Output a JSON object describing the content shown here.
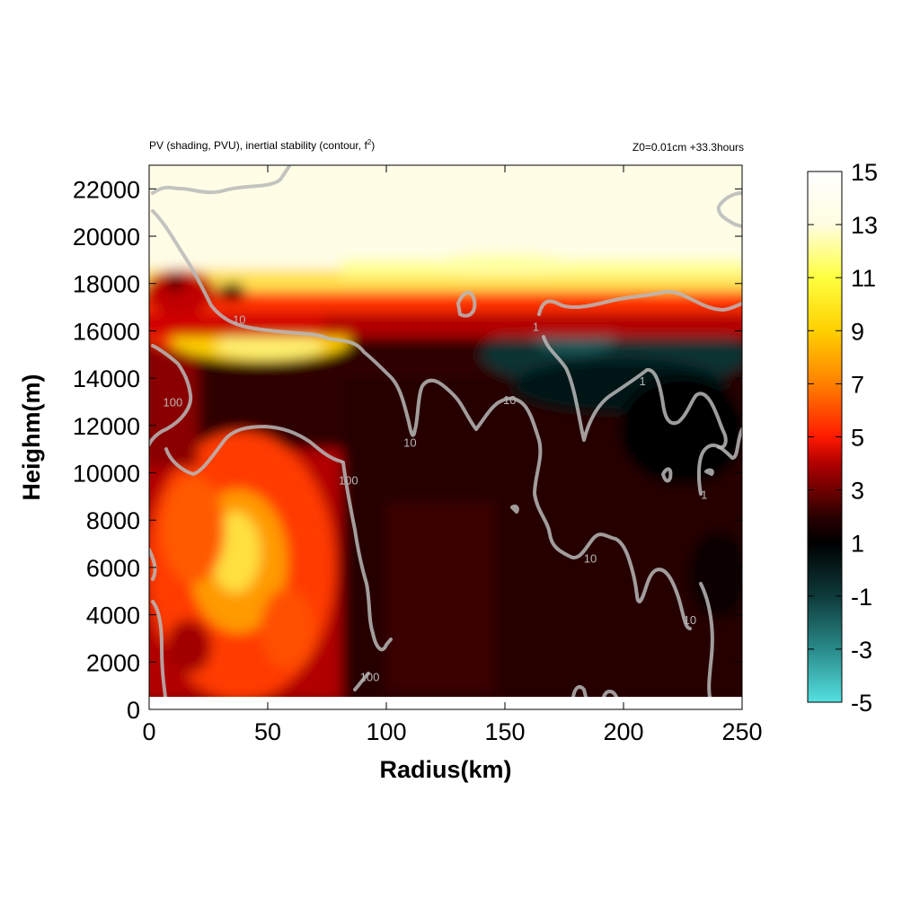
{
  "chart_data": {
    "type": "heatmap",
    "title_left": "PV (shading, PVU), inertial stability (contour, f",
    "title_left_sup": "2",
    "title_left_end": ")",
    "title_right": "Z0=0.01cm  +33.3hours",
    "xlabel": "Radius(km)",
    "ylabel": "Heighm(m)",
    "xlim": [
      0,
      250
    ],
    "ylim": [
      0,
      23000
    ],
    "x_ticks": [
      "0",
      "50",
      "100",
      "150",
      "200",
      "250"
    ],
    "y_ticks": [
      "0",
      "2000",
      "4000",
      "6000",
      "8000",
      "10000",
      "12000",
      "14000",
      "16000",
      "18000",
      "20000",
      "22000"
    ],
    "data_floor_m": 500,
    "colorbar": {
      "min": -5,
      "max": 15,
      "ticks": [
        "15",
        "13",
        "11",
        "9",
        "7",
        "5",
        "3",
        "1",
        "-1",
        "-3",
        "-5"
      ],
      "colors": [
        "#ffffff",
        "#fffde0",
        "#ffff40",
        "#ffd000",
        "#ff8000",
        "#ff1a00",
        "#b00000",
        "#3a0000",
        "#000000",
        "#0e3a3a",
        "#2a8a8a",
        "#55e0e0"
      ]
    },
    "contour_levels": [
      "1",
      "10",
      "100"
    ],
    "contour_labels": [
      {
        "text": "10",
        "x": 38,
        "y": 16300
      },
      {
        "text": "100",
        "x": 10,
        "y": 12800
      },
      {
        "text": "10",
        "x": 110,
        "y": 11100
      },
      {
        "text": "10",
        "x": 152,
        "y": 12900
      },
      {
        "text": "1",
        "x": 163,
        "y": 16000
      },
      {
        "text": "1",
        "x": 208,
        "y": 13700
      },
      {
        "text": "100",
        "x": 84,
        "y": 9500
      },
      {
        "text": "10",
        "x": 186,
        "y": 6200
      },
      {
        "text": "10",
        "x": 228,
        "y": 3600
      },
      {
        "text": "1",
        "x": 234,
        "y": 8900
      },
      {
        "text": "100",
        "x": 93,
        "y": 1200
      }
    ]
  }
}
